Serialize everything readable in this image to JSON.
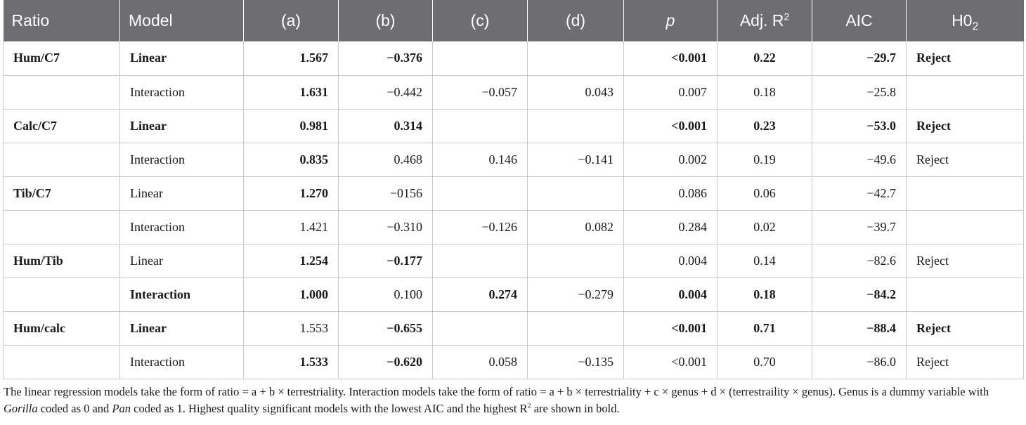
{
  "headers": {
    "ratio": "Ratio",
    "model": "Model",
    "a": "(a)",
    "b": "(b)",
    "c": "(c)",
    "d": "(d)",
    "p": "p",
    "adj_r_base": "Adj. R",
    "adj_r_sup": "2",
    "aic": "AIC",
    "h0_base": "H0",
    "h0_sub": "2"
  },
  "rows": [
    {
      "ratio": "Hum/C7",
      "model": "Linear",
      "a": "1.567",
      "b": "−0.376",
      "c": "",
      "d": "",
      "p": "<0.001",
      "r2": "0.22",
      "aic": "−29.7",
      "h0": "Reject"
    },
    {
      "ratio": "",
      "model": "Interaction",
      "a": "1.631",
      "b": "−0.442",
      "c": "−0.057",
      "d": "0.043",
      "p": "0.007",
      "r2": "0.18",
      "aic": "−25.8",
      "h0": ""
    },
    {
      "ratio": "Calc/C7",
      "model": "Linear",
      "a": "0.981",
      "b": "0.314",
      "c": "",
      "d": "",
      "p": "<0.001",
      "r2": "0.23",
      "aic": "−53.0",
      "h0": "Reject"
    },
    {
      "ratio": "",
      "model": "Interaction",
      "a": "0.835",
      "b": "0.468",
      "c": "0.146",
      "d": "−0.141",
      "p": "0.002",
      "r2": "0.19",
      "aic": "−49.6",
      "h0": "Reject"
    },
    {
      "ratio": "Tib/C7",
      "model": "Linear",
      "a": "1.270",
      "b": "−0156",
      "c": "",
      "d": "",
      "p": "0.086",
      "r2": "0.06",
      "aic": "−42.7",
      "h0": ""
    },
    {
      "ratio": "",
      "model": "Interaction",
      "a": "1.421",
      "b": "−0.310",
      "c": "−0.126",
      "d": "0.082",
      "p": "0.284",
      "r2": "0.02",
      "aic": "−39.7",
      "h0": ""
    },
    {
      "ratio": "Hum/Tib",
      "model": "Linear",
      "a": "1.254",
      "b": "−0.177",
      "c": "",
      "d": "",
      "p": "0.004",
      "r2": "0.14",
      "aic": "−82.6",
      "h0": "Reject"
    },
    {
      "ratio": "",
      "model": "Interaction",
      "a": "1.000",
      "b": "0.100",
      "c": "0.274",
      "d": "−0.279",
      "p": "0.004",
      "r2": "0.18",
      "aic": "−84.2",
      "h0": ""
    },
    {
      "ratio": "Hum/calc",
      "model": "Linear",
      "a": "1.553",
      "b": "−0.655",
      "c": "",
      "d": "",
      "p": "<0.001",
      "r2": "0.71",
      "aic": "−88.4",
      "h0": "Reject"
    },
    {
      "ratio": "",
      "model": "Interaction",
      "a": "1.533",
      "b": "−0.620",
      "c": "0.058",
      "d": "−0.135",
      "p": "<0.001",
      "r2": "0.70",
      "aic": "−86.0",
      "h0": "Reject"
    }
  ],
  "footnote": {
    "part1": "The linear regression models take the form of ratio = a + b × terrestriality. Interaction models take the form of ratio = a + b × terrestriality + c × genus + d × (terrestraility × genus). Genus is a dummy variable with ",
    "gorilla": "Gorilla",
    "part2": " coded as 0 and ",
    "pan": "Pan",
    "part3": " coded as 1. Highest quality significant models with the lowest AIC and the highest R",
    "sup": "2",
    "part4": " are shown in bold."
  }
}
